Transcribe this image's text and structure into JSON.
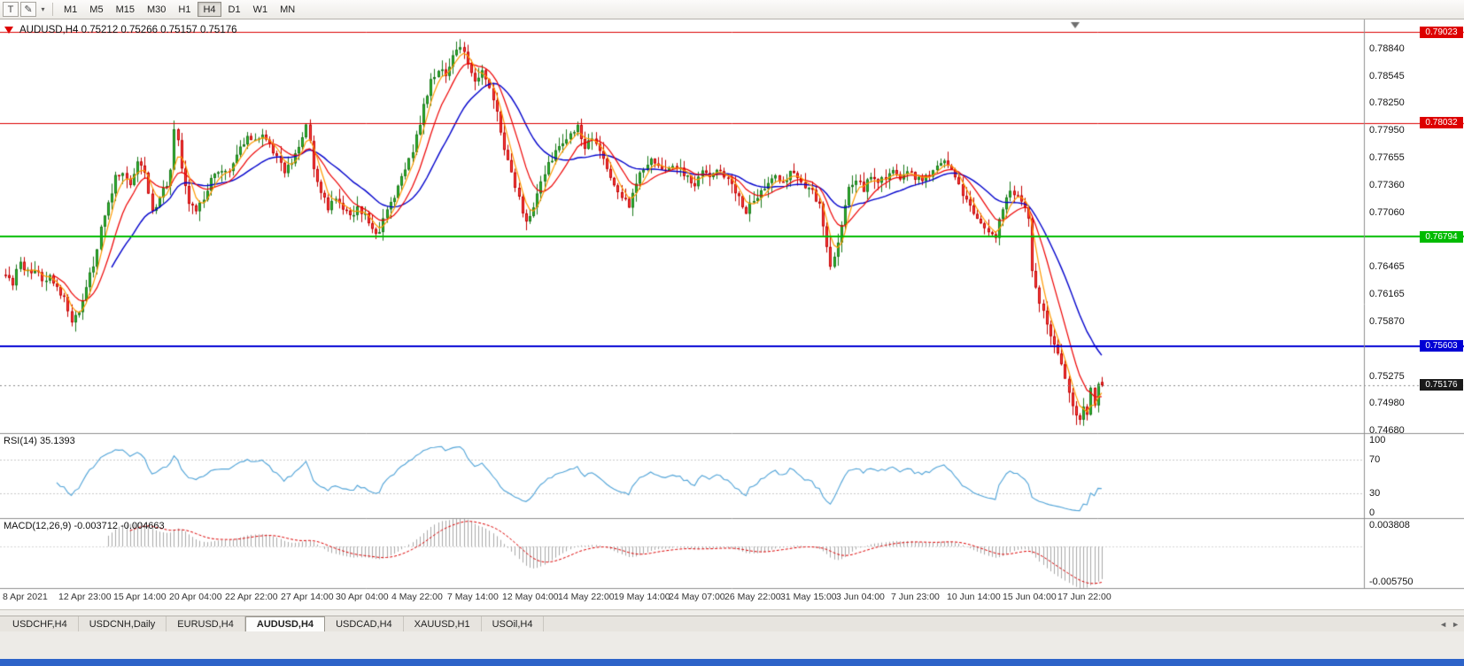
{
  "toolbar": {
    "icon_buttons": [
      {
        "name": "templates-button",
        "glyph": "T"
      },
      {
        "name": "draw-tool-button",
        "glyph": "✎"
      },
      {
        "name": "dropdown-caret",
        "glyph": "▾"
      }
    ],
    "timeframes": [
      "M1",
      "M5",
      "M15",
      "M30",
      "H1",
      "H4",
      "D1",
      "W1",
      "MN"
    ],
    "active_timeframe": "H4"
  },
  "chart": {
    "title": "AUDUSD,H4 0.75212 0.75266 0.75157 0.75176",
    "symbol": "AUDUSD",
    "timeframe": "H4",
    "ohlc": {
      "open": "0.75212",
      "high": "0.75266",
      "low": "0.75157",
      "close": "0.75176"
    },
    "y_axis_ticks": [
      "0.78840",
      "0.78545",
      "0.78250",
      "0.77950",
      "0.77655",
      "0.77360",
      "0.77060",
      "0.76465",
      "0.76165",
      "0.75870",
      "0.75275",
      "0.74980",
      "0.74680"
    ],
    "x_axis_labels": [
      "8 Apr 2021",
      "12 Apr 23:00",
      "15 Apr 14:00",
      "20 Apr 04:00",
      "22 Apr 22:00",
      "27 Apr 14:00",
      "30 Apr 04:00",
      "4 May 22:00",
      "7 May 14:00",
      "12 May 04:00",
      "14 May 22:00",
      "19 May 14:00",
      "24 May 07:00",
      "26 May 22:00",
      "31 May 15:00",
      "3 Jun 04:00",
      "7 Jun 23:00",
      "10 Jun 14:00",
      "15 Jun 04:00",
      "17 Jun 22:00"
    ],
    "levels": [
      {
        "label": "0.79023",
        "value": 0.79023,
        "color": "#dd0000",
        "thickness": 1
      },
      {
        "label": "0.78032",
        "value": 0.78032,
        "color": "#dd0000",
        "thickness": 1
      },
      {
        "label": "0.76794",
        "value": 0.76794,
        "color": "#00bb00",
        "thickness": 2
      },
      {
        "label": "0.75603",
        "value": 0.75603,
        "color": "#0000d4",
        "thickness": 2
      }
    ],
    "current_price": {
      "label": "0.75176",
      "value": 0.75176,
      "badge_color": "#1a1a1a"
    }
  },
  "indicators": {
    "rsi": {
      "label": "RSI(14) 35.1393",
      "period": 14,
      "value": 35.1393,
      "axis_labels": [
        "100",
        "70",
        "30",
        "0"
      ],
      "line_color": "#4fa3d8"
    },
    "macd": {
      "label": "MACD(12,26,9) -0.003712 -0.004663",
      "params": [
        12,
        26,
        9
      ],
      "macd_value": -0.003712,
      "signal_value": -0.004663,
      "scale_top": "0.003808",
      "scale_bottom": "-0.005750",
      "histogram_color": "#a9a9a9",
      "signal_color": "#dd0000"
    }
  },
  "tabs": {
    "items": [
      "USDCHF,H4",
      "USDCNH,Daily",
      "EURUSD,H4",
      "AUDUSD,H4",
      "USDCAD,H4",
      "XAUUSD,H1",
      "USOil,H4"
    ],
    "active": "AUDUSD,H4",
    "scroll_left_glyph": "◄",
    "scroll_right_glyph": "►"
  },
  "chart_data": {
    "type": "candlestick",
    "symbol": "AUDUSD",
    "timeframe": "H4",
    "price_range": [
      0.74655,
      0.7916
    ],
    "candle_count": 300,
    "up_color": "#2ebd2e",
    "up_edge": "#1b7a1b",
    "down_color": "#ff4646",
    "down_edge": "#c40000",
    "close_anchors": [
      [
        0,
        0.7641
      ],
      [
        2,
        0.763
      ],
      [
        4,
        0.7652
      ],
      [
        6,
        0.764
      ],
      [
        8,
        0.7645
      ],
      [
        10,
        0.7632
      ],
      [
        12,
        0.7638
      ],
      [
        14,
        0.7626
      ],
      [
        16,
        0.761
      ],
      [
        18,
        0.7588
      ],
      [
        20,
        0.76
      ],
      [
        22,
        0.7625
      ],
      [
        24,
        0.7648
      ],
      [
        26,
        0.769
      ],
      [
        28,
        0.7715
      ],
      [
        30,
        0.7745
      ],
      [
        32,
        0.775
      ],
      [
        34,
        0.7738
      ],
      [
        36,
        0.7758
      ],
      [
        38,
        0.775
      ],
      [
        40,
        0.7706
      ],
      [
        42,
        0.7725
      ],
      [
        44,
        0.7735
      ],
      [
        45,
        0.7752
      ],
      [
        46,
        0.78
      ],
      [
        47,
        0.7786
      ],
      [
        48,
        0.7752
      ],
      [
        50,
        0.7718
      ],
      [
        52,
        0.7708
      ],
      [
        54,
        0.7722
      ],
      [
        56,
        0.774
      ],
      [
        58,
        0.7752
      ],
      [
        60,
        0.7748
      ],
      [
        62,
        0.7758
      ],
      [
        64,
        0.7775
      ],
      [
        66,
        0.779
      ],
      [
        68,
        0.7782
      ],
      [
        70,
        0.779
      ],
      [
        72,
        0.7778
      ],
      [
        74,
        0.7768
      ],
      [
        76,
        0.7752
      ],
      [
        78,
        0.7762
      ],
      [
        80,
        0.7775
      ],
      [
        82,
        0.7805
      ],
      [
        83,
        0.778
      ],
      [
        84,
        0.7755
      ],
      [
        86,
        0.773
      ],
      [
        88,
        0.7712
      ],
      [
        90,
        0.7722
      ],
      [
        92,
        0.7712
      ],
      [
        94,
        0.77
      ],
      [
        96,
        0.7712
      ],
      [
        98,
        0.7702
      ],
      [
        100,
        0.769
      ],
      [
        102,
        0.7682
      ],
      [
        104,
        0.7712
      ],
      [
        106,
        0.7722
      ],
      [
        108,
        0.7745
      ],
      [
        110,
        0.7762
      ],
      [
        112,
        0.7788
      ],
      [
        114,
        0.7822
      ],
      [
        116,
        0.785
      ],
      [
        118,
        0.7862
      ],
      [
        120,
        0.7858
      ],
      [
        122,
        0.7875
      ],
      [
        124,
        0.7888
      ],
      [
        126,
        0.787
      ],
      [
        128,
        0.7845
      ],
      [
        130,
        0.7858
      ],
      [
        132,
        0.7838
      ],
      [
        134,
        0.7812
      ],
      [
        136,
        0.7775
      ],
      [
        138,
        0.7748
      ],
      [
        140,
        0.772
      ],
      [
        142,
        0.7695
      ],
      [
        144,
        0.7715
      ],
      [
        146,
        0.774
      ],
      [
        148,
        0.7758
      ],
      [
        150,
        0.7772
      ],
      [
        152,
        0.778
      ],
      [
        154,
        0.7792
      ],
      [
        156,
        0.78
      ],
      [
        158,
        0.7775
      ],
      [
        160,
        0.7788
      ],
      [
        162,
        0.7772
      ],
      [
        164,
        0.7755
      ],
      [
        166,
        0.7738
      ],
      [
        168,
        0.7722
      ],
      [
        170,
        0.7712
      ],
      [
        172,
        0.7738
      ],
      [
        174,
        0.7755
      ],
      [
        176,
        0.7765
      ],
      [
        178,
        0.7758
      ],
      [
        180,
        0.7748
      ],
      [
        182,
        0.776
      ],
      [
        184,
        0.7752
      ],
      [
        186,
        0.7745
      ],
      [
        188,
        0.7738
      ],
      [
        190,
        0.7748
      ],
      [
        192,
        0.7742
      ],
      [
        194,
        0.7752
      ],
      [
        196,
        0.7745
      ],
      [
        198,
        0.7738
      ],
      [
        200,
        0.7722
      ],
      [
        202,
        0.7708
      ],
      [
        204,
        0.7718
      ],
      [
        206,
        0.773
      ],
      [
        208,
        0.7738
      ],
      [
        210,
        0.7745
      ],
      [
        212,
        0.7738
      ],
      [
        214,
        0.7748
      ],
      [
        216,
        0.7742
      ],
      [
        218,
        0.7735
      ],
      [
        220,
        0.7728
      ],
      [
        222,
        0.7712
      ],
      [
        224,
        0.7665
      ],
      [
        225,
        0.7648
      ],
      [
        226,
        0.7658
      ],
      [
        228,
        0.7695
      ],
      [
        230,
        0.773
      ],
      [
        232,
        0.774
      ],
      [
        234,
        0.7732
      ],
      [
        236,
        0.7745
      ],
      [
        238,
        0.7738
      ],
      [
        240,
        0.7745
      ],
      [
        242,
        0.7752
      ],
      [
        244,
        0.7742
      ],
      [
        246,
        0.7752
      ],
      [
        248,
        0.7745
      ],
      [
        250,
        0.774
      ],
      [
        252,
        0.7748
      ],
      [
        254,
        0.7755
      ],
      [
        256,
        0.776
      ],
      [
        258,
        0.7752
      ],
      [
        260,
        0.7735
      ],
      [
        262,
        0.7718
      ],
      [
        264,
        0.7705
      ],
      [
        266,
        0.7695
      ],
      [
        268,
        0.7688
      ],
      [
        270,
        0.7682
      ],
      [
        272,
        0.771
      ],
      [
        274,
        0.7728
      ],
      [
        276,
        0.7722
      ],
      [
        278,
        0.7712
      ],
      [
        279,
        0.7698
      ],
      [
        280,
        0.764
      ],
      [
        282,
        0.7608
      ],
      [
        284,
        0.7585
      ],
      [
        286,
        0.7562
      ],
      [
        288,
        0.7542
      ],
      [
        290,
        0.7508
      ],
      [
        292,
        0.7488
      ],
      [
        293,
        0.7478
      ],
      [
        294,
        0.7492
      ],
      [
        295,
        0.7482
      ],
      [
        296,
        0.7512
      ],
      [
        297,
        0.7498
      ],
      [
        298,
        0.7522
      ],
      [
        299,
        0.75176
      ]
    ],
    "last_candle": {
      "open": 0.75212,
      "high": 0.75266,
      "low": 0.75157,
      "close": 0.75176
    },
    "moving_averages": [
      {
        "name": "fast",
        "period": 6,
        "color": "#ff9900"
      },
      {
        "name": "medium",
        "period": 14,
        "color": "#ee0000"
      },
      {
        "name": "slow",
        "period": 30,
        "color": "#0000cc"
      }
    ],
    "rsi_period": 14,
    "rsi_levels": [
      70,
      30
    ],
    "macd_params": [
      12,
      26,
      9
    ]
  }
}
